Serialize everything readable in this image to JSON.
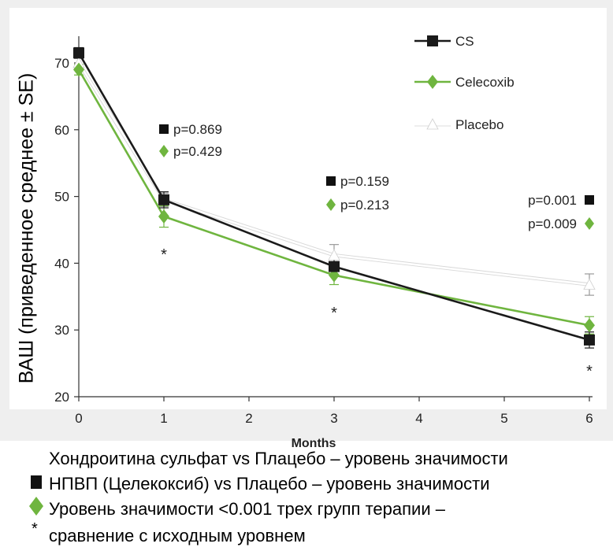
{
  "chart_data": {
    "type": "line",
    "title": "",
    "xlabel": "Months",
    "ylabel": "ВАШ (приведенное среднее ± SE)",
    "x": [
      0,
      1,
      3,
      6
    ],
    "xticks": [
      0,
      1,
      2,
      3,
      4,
      5,
      6
    ],
    "yticks": [
      20,
      30,
      40,
      50,
      60,
      70
    ],
    "xlim": [
      0,
      6
    ],
    "ylim": [
      20,
      75
    ],
    "grid": false,
    "legend_position": "top-right",
    "series": [
      {
        "name": "CS",
        "marker": "square",
        "color": "#1a1a1a",
        "values": [
          71.5,
          49.5,
          39.5,
          28.5
        ],
        "se": [
          0.8,
          1.2,
          1.2,
          1.2
        ]
      },
      {
        "name": "Celecoxib",
        "marker": "diamond",
        "color": "#6fb53f",
        "values": [
          69.0,
          47.0,
          38.2,
          30.7
        ],
        "se": [
          0.8,
          1.6,
          1.4,
          1.3
        ]
      },
      {
        "name": "Placebo",
        "marker": "triangle",
        "color": "#ffffff",
        "values": [
          70.0,
          49.5,
          41.2,
          36.8
        ],
        "se": [
          0.8,
          1.0,
          1.6,
          1.6
        ]
      }
    ],
    "annotations": [
      {
        "x": 1,
        "lines": [
          {
            "marker": "square",
            "text": "p=0.869"
          },
          {
            "marker": "diamond",
            "text": "p=0.429"
          }
        ]
      },
      {
        "x": 3,
        "lines": [
          {
            "marker": "square",
            "text": "p=0.159"
          },
          {
            "marker": "diamond",
            "text": "p=0.213"
          }
        ]
      },
      {
        "x": 6,
        "lines": [
          {
            "marker": "square",
            "text": "p=0.001"
          },
          {
            "marker": "diamond",
            "text": "p=0.009"
          }
        ]
      }
    ],
    "stars": [
      {
        "x": 1,
        "text": "*"
      },
      {
        "x": 3,
        "text": "*"
      },
      {
        "x": 6,
        "text": "*"
      }
    ]
  },
  "notes": [
    {
      "text": "Хондроитина сульфат vs Плацебо – уровень значимости"
    },
    {
      "icon": "square",
      "text": "НПВП (Целекоксиб) vs Плацебо – уровень значимости"
    },
    {
      "icon": "diamond",
      "text": "Уровень значимости <0.001 трех групп терапии –"
    },
    {
      "icon": "star",
      "text": "сравнение с исходным уровнем",
      "star": "*"
    }
  ]
}
